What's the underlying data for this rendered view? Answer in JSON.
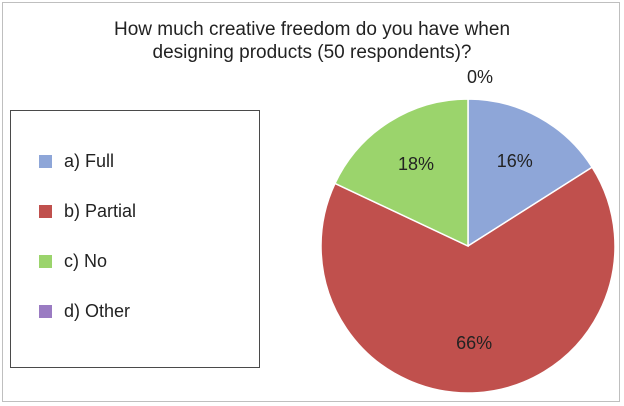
{
  "chart_data": {
    "type": "pie",
    "title": "How much creative freedom do you have when\ndesigning products (50 respondents)?",
    "slices": [
      {
        "label": "a) Full",
        "value": 16,
        "display": "16%",
        "color": "#8ea6d8"
      },
      {
        "label": "b) Partial",
        "value": 66,
        "display": "66%",
        "color": "#c0504d"
      },
      {
        "label": "c) No",
        "value": 18,
        "display": "18%",
        "color": "#9bd46c"
      },
      {
        "label": "d) Other",
        "value": 0,
        "display": "0%",
        "color": "#9a7bc2"
      }
    ],
    "legend_placement": "left",
    "start_angle": "top",
    "direction": "clockwise"
  }
}
